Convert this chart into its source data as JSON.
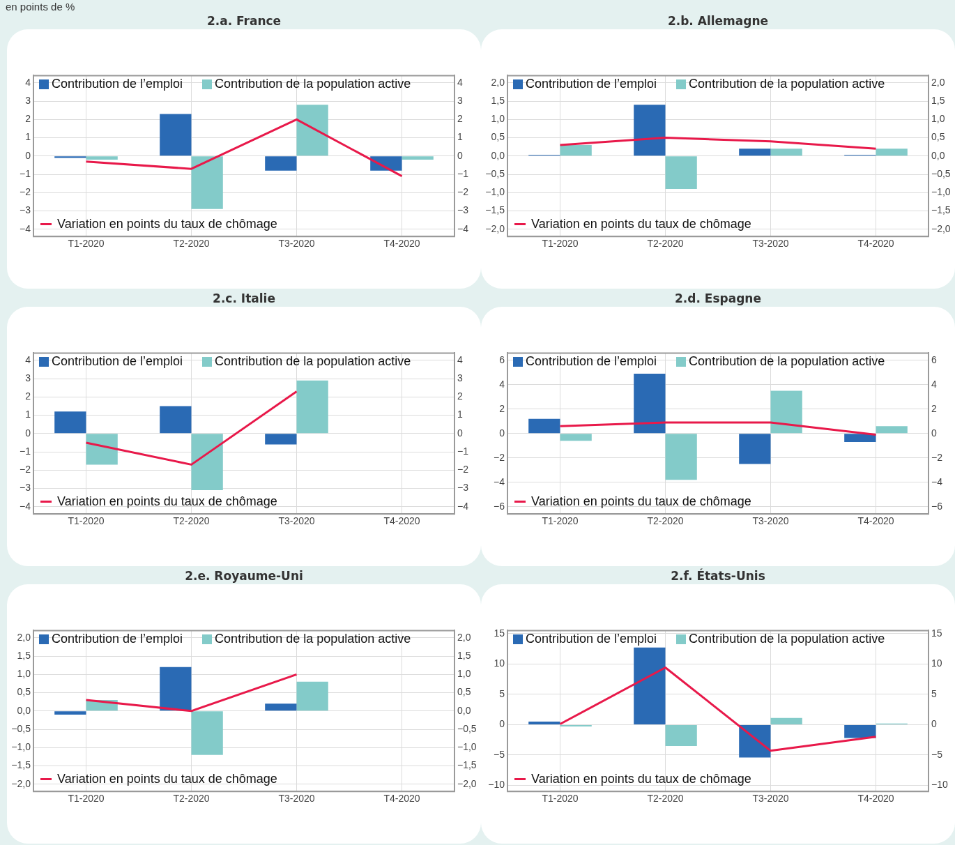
{
  "chart_data": [
    {
      "type": "bar",
      "title": "2.a. France",
      "annotations": [
        "en points de %"
      ],
      "categories": [
        "T1-2020",
        "T2-2020",
        "T3-2020",
        "T4-2020"
      ],
      "series": [
        {
          "name": "Contribution de l’emploi",
          "color": "#2a6ab4",
          "values": [
            -0.1,
            2.3,
            -0.8,
            -0.8
          ]
        },
        {
          "name": "Contribution de la population active",
          "color": "#83cbc9",
          "values": [
            -0.2,
            -2.9,
            2.8,
            -0.2
          ]
        },
        {
          "name": "Variation en points du taux de chômage",
          "type": "line",
          "color": "#e8194a",
          "values": [
            -0.3,
            -0.7,
            2.0,
            -1.1
          ]
        }
      ],
      "ylim": [
        -4.4,
        4.4
      ],
      "yticks": [
        {
          "value": -4,
          "label": "−4"
        },
        {
          "value": -3,
          "label": "−3"
        },
        {
          "value": -2,
          "label": "−2"
        },
        {
          "value": -1,
          "label": "−1"
        },
        0,
        1,
        2,
        3,
        4
      ],
      "y2lim": [
        -4.4,
        4.4
      ],
      "y2ticks": [
        {
          "value": -4,
          "label": "−4"
        },
        {
          "value": -3,
          "label": "−3"
        },
        {
          "value": -2,
          "label": "−2"
        },
        {
          "value": -1,
          "label": "−1"
        },
        0,
        1,
        2,
        3,
        4
      ],
      "grid": true,
      "legend": "top left",
      "marker": "none",
      "line_style": "solid"
    },
    {
      "type": "bar",
      "title": "2.b. Allemagne",
      "categories": [
        "T1-2020",
        "T2-2020",
        "T3-2020",
        "T4-2020"
      ],
      "series": [
        {
          "name": "Contribution de l’emploi",
          "color": "#2a6ab4",
          "values": [
            0.03,
            1.4,
            0.2,
            0.03
          ]
        },
        {
          "name": "Contribution de la population active",
          "color": "#83cbc9",
          "values": [
            0.3,
            -0.9,
            0.2,
            0.2
          ]
        },
        {
          "name": "Variation en points du taux de chômage",
          "type": "line",
          "color": "#e8194a",
          "values": [
            0.3,
            0.5,
            0.4,
            0.2
          ]
        }
      ],
      "ylim": [
        -2.2,
        2.2
      ],
      "yticks": [
        {
          "value": -2,
          "label": "−2,0"
        },
        {
          "value": -1.5,
          "label": "−1,5"
        },
        {
          "value": -1,
          "label": "−1,0"
        },
        {
          "value": -0.5,
          "label": "−0,5"
        },
        {
          "value": 0,
          "label": "0,0"
        },
        {
          "value": 0.5,
          "label": "0,5"
        },
        {
          "value": 1,
          "label": "1,0"
        },
        {
          "value": 1.5,
          "label": "1,5"
        },
        {
          "value": 2,
          "label": "2,0"
        }
      ],
      "y2lim": [
        -2.2,
        2.2
      ],
      "y2ticks": [
        {
          "value": -2,
          "label": "−2,0"
        },
        {
          "value": -1.5,
          "label": "−1,5"
        },
        {
          "value": -1,
          "label": "−1,0"
        },
        {
          "value": -0.5,
          "label": "−0,5"
        },
        {
          "value": 0,
          "label": "0,0"
        },
        {
          "value": 0.5,
          "label": "0,5"
        },
        {
          "value": 1,
          "label": "1,0"
        },
        {
          "value": 1.5,
          "label": "1,5"
        },
        {
          "value": 2,
          "label": "2,0"
        }
      ],
      "grid": true,
      "legend": "top left",
      "marker": "none",
      "line_style": "solid"
    },
    {
      "type": "bar",
      "title": "2.c. Italie",
      "categories": [
        "T1-2020",
        "T2-2020",
        "T3-2020",
        "T4-2020"
      ],
      "series": [
        {
          "name": "Contribution de l’emploi",
          "color": "#2a6ab4",
          "values": [
            1.2,
            1.5,
            -0.6,
            null
          ]
        },
        {
          "name": "Contribution de la population active",
          "color": "#83cbc9",
          "values": [
            -1.7,
            -3.1,
            2.9,
            null
          ]
        },
        {
          "name": "Variation en points du taux de chômage",
          "type": "line",
          "color": "#e8194a",
          "values": [
            -0.5,
            -1.7,
            2.3,
            null
          ]
        }
      ],
      "ylim": [
        -4.4,
        4.4
      ],
      "yticks": [
        {
          "value": -4,
          "label": "−4"
        },
        {
          "value": -3,
          "label": "−3"
        },
        {
          "value": -2,
          "label": "−2"
        },
        {
          "value": -1,
          "label": "−1"
        },
        0,
        1,
        2,
        3,
        4
      ],
      "y2lim": [
        -4.4,
        4.4
      ],
      "y2ticks": [
        {
          "value": -4,
          "label": "−4"
        },
        {
          "value": -3,
          "label": "−3"
        },
        {
          "value": -2,
          "label": "−2"
        },
        {
          "value": -1,
          "label": "−1"
        },
        0,
        1,
        2,
        3,
        4
      ],
      "grid": true,
      "legend": "top left",
      "marker": "none",
      "line_style": "solid"
    },
    {
      "type": "bar",
      "title": "2.d. Espagne",
      "categories": [
        "T1-2020",
        "T2-2020",
        "T3-2020",
        "T4-2020"
      ],
      "series": [
        {
          "name": "Contribution de l’emploi",
          "color": "#2a6ab4",
          "values": [
            1.2,
            4.9,
            -2.5,
            -0.7
          ]
        },
        {
          "name": "Contribution de la population active",
          "color": "#83cbc9",
          "values": [
            -0.6,
            -3.8,
            3.5,
            0.6
          ]
        },
        {
          "name": "Variation en points du taux de chômage",
          "type": "line",
          "color": "#e8194a",
          "values": [
            0.6,
            0.9,
            0.9,
            -0.1
          ]
        }
      ],
      "ylim": [
        -6.6,
        6.6
      ],
      "yticks": [
        {
          "value": -6,
          "label": "−6"
        },
        {
          "value": -4,
          "label": "−4"
        },
        {
          "value": -2,
          "label": "−2"
        },
        0,
        2,
        4,
        6
      ],
      "y2lim": [
        -6.6,
        6.6
      ],
      "y2ticks": [
        {
          "value": -6,
          "label": "−6"
        },
        {
          "value": -4,
          "label": "−4"
        },
        {
          "value": -2,
          "label": "−2"
        },
        0,
        2,
        4,
        6
      ],
      "grid": true,
      "legend": "top left",
      "marker": "none",
      "line_style": "solid"
    },
    {
      "type": "bar",
      "title": "2.e. Royaume-Uni",
      "categories": [
        "T1-2020",
        "T2-2020",
        "T3-2020",
        "T4-2020"
      ],
      "series": [
        {
          "name": "Contribution de l’emploi",
          "color": "#2a6ab4",
          "values": [
            -0.1,
            1.2,
            0.2,
            null
          ]
        },
        {
          "name": "Contribution de la population active",
          "color": "#83cbc9",
          "values": [
            0.3,
            -1.2,
            0.8,
            null
          ]
        },
        {
          "name": "Variation en points du taux de chômage",
          "type": "line",
          "color": "#e8194a",
          "values": [
            0.3,
            0.0,
            1.0,
            null
          ]
        }
      ],
      "ylim": [
        -2.2,
        2.2
      ],
      "yticks": [
        {
          "value": -2,
          "label": "−2,0"
        },
        {
          "value": -1.5,
          "label": "−1,5"
        },
        {
          "value": -1,
          "label": "−1,0"
        },
        {
          "value": -0.5,
          "label": "−0,5"
        },
        {
          "value": 0,
          "label": "0,0"
        },
        {
          "value": 0.5,
          "label": "0,5"
        },
        {
          "value": 1,
          "label": "1,0"
        },
        {
          "value": 1.5,
          "label": "1,5"
        },
        {
          "value": 2,
          "label": "2,0"
        }
      ],
      "y2lim": [
        -2.2,
        2.2
      ],
      "y2ticks": [
        {
          "value": -2,
          "label": "−2,0"
        },
        {
          "value": -1.5,
          "label": "−1,5"
        },
        {
          "value": -1,
          "label": "−1,0"
        },
        {
          "value": -0.5,
          "label": "−0,5"
        },
        {
          "value": 0,
          "label": "0,0"
        },
        {
          "value": 0.5,
          "label": "0,5"
        },
        {
          "value": 1,
          "label": "1,0"
        },
        {
          "value": 1.5,
          "label": "1,5"
        },
        {
          "value": 2,
          "label": "2,0"
        }
      ],
      "grid": true,
      "legend": "top left",
      "marker": "none",
      "line_style": "solid"
    },
    {
      "type": "bar",
      "title": "2.f. États-Unis",
      "categories": [
        "T1-2020",
        "T2-2020",
        "T3-2020",
        "T4-2020"
      ],
      "series": [
        {
          "name": "Contribution de l’emploi",
          "color": "#2a6ab4",
          "values": [
            0.5,
            12.7,
            -5.4,
            -2.2
          ]
        },
        {
          "name": "Contribution de la population active",
          "color": "#83cbc9",
          "values": [
            -0.3,
            -3.5,
            1.1,
            0.2
          ]
        },
        {
          "name": "Variation en points du taux de chômage",
          "type": "line",
          "color": "#e8194a",
          "values": [
            0.1,
            9.4,
            -4.3,
            -2.0
          ]
        }
      ],
      "ylim": [
        -11,
        15.5
      ],
      "yticks": [
        {
          "value": -10,
          "label": "−10"
        },
        {
          "value": -5,
          "label": "−5"
        },
        0,
        5,
        10,
        15
      ],
      "y2lim": [
        -11,
        15.5
      ],
      "y2ticks": [
        {
          "value": -10,
          "label": "−10"
        },
        {
          "value": -5,
          "label": "−5"
        },
        0,
        5,
        10,
        15
      ],
      "grid": true,
      "legend": "top left",
      "marker": "none",
      "line_style": "solid"
    }
  ]
}
